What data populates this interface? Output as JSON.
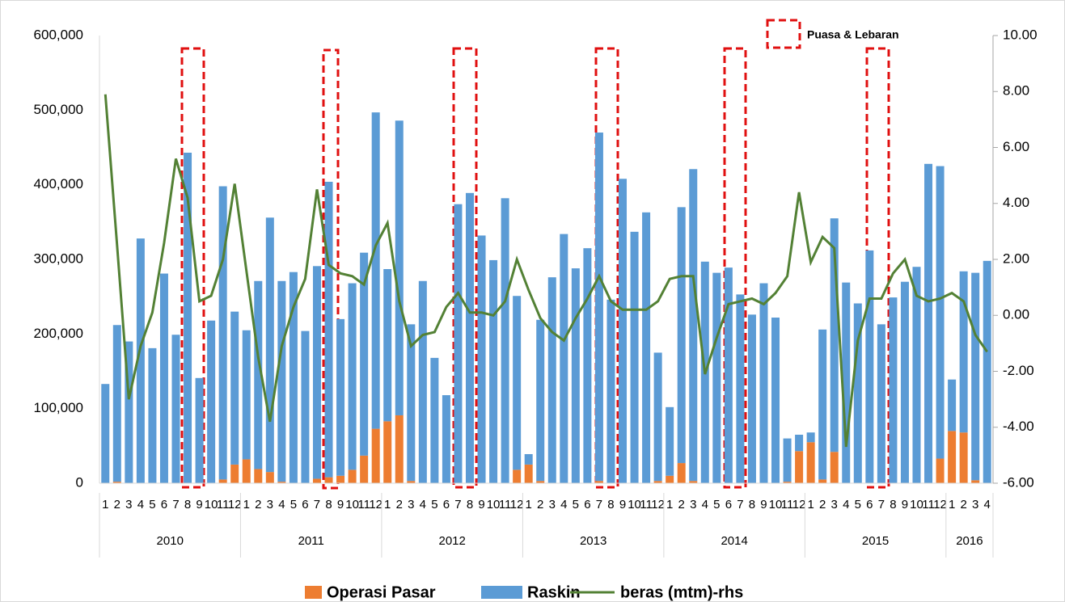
{
  "chart_data": {
    "type": "bar",
    "categories": [
      "1",
      "2",
      "3",
      "4",
      "5",
      "6",
      "7",
      "8",
      "9",
      "10",
      "11",
      "12",
      "1",
      "2",
      "3",
      "4",
      "5",
      "6",
      "7",
      "8",
      "9",
      "10",
      "11",
      "12",
      "1",
      "2",
      "3",
      "4",
      "5",
      "6",
      "7",
      "8",
      "9",
      "10",
      "11",
      "12",
      "1",
      "2",
      "3",
      "4",
      "5",
      "6",
      "7",
      "8",
      "9",
      "10",
      "11",
      "12",
      "1",
      "2",
      "3",
      "4",
      "5",
      "6",
      "7",
      "8",
      "9",
      "10",
      "11",
      "12",
      "1",
      "2",
      "3",
      "4",
      "5",
      "6",
      "7",
      "8",
      "9",
      "10",
      "11",
      "12",
      "1",
      "2",
      "3",
      "4"
    ],
    "year_groups": [
      "2010",
      "2011",
      "2012",
      "2013",
      "2014",
      "2015",
      "2016"
    ],
    "stacked": true,
    "series": [
      {
        "name": "Operasi Pasar",
        "color": "#ed7d31",
        "type": "bar",
        "values": [
          0,
          2000,
          0,
          0,
          0,
          0,
          0,
          0,
          0,
          0,
          5000,
          25000,
          32000,
          19000,
          15000,
          2000,
          0,
          0,
          6000,
          8000,
          10000,
          18000,
          37000,
          73000,
          83000,
          91000,
          3000,
          0,
          0,
          0,
          0,
          0,
          0,
          0,
          0,
          18000,
          25000,
          3000,
          0,
          0,
          0,
          0,
          3000,
          0,
          0,
          0,
          0,
          3000,
          10000,
          27000,
          3000,
          0,
          0,
          0,
          0,
          0,
          0,
          0,
          2000,
          43000,
          55000,
          5000,
          42000,
          0,
          0,
          0,
          0,
          0,
          0,
          0,
          0,
          33000,
          70000,
          68000,
          4000,
          0
        ]
      },
      {
        "name": "Raskin",
        "color": "#5b9bd5",
        "type": "bar",
        "values": [
          133000,
          210000,
          190000,
          328000,
          181000,
          281000,
          199000,
          443000,
          141000,
          218000,
          393000,
          205000,
          173000,
          252000,
          341000,
          269000,
          283000,
          204000,
          285000,
          396000,
          210000,
          250000,
          272000,
          424000,
          204000,
          395000,
          210000,
          271000,
          168000,
          118000,
          374000,
          389000,
          332000,
          299000,
          382000,
          233000,
          14000,
          216000,
          276000,
          334000,
          288000,
          315000,
          467000,
          246000,
          408000,
          337000,
          363000,
          172000,
          92000,
          343000,
          418000,
          297000,
          282000,
          289000,
          253000,
          226000,
          268000,
          222000,
          58000,
          22000,
          13000,
          201000,
          313000,
          269000,
          241000,
          312000,
          213000,
          249000,
          270000,
          290000,
          428000,
          392000,
          69000,
          216000,
          278000,
          298000
        ]
      },
      {
        "name": "beras (mtm)-rhs",
        "color": "#538135",
        "type": "line",
        "axis": "y2",
        "values": [
          7.9,
          2.5,
          -3.0,
          -1.1,
          0.1,
          2.6,
          5.6,
          4.2,
          0.5,
          0.7,
          2.0,
          4.7,
          1.6,
          -1.5,
          -3.8,
          -1.1,
          0.3,
          1.3,
          4.5,
          1.8,
          1.5,
          1.4,
          1.1,
          2.5,
          3.3,
          0.5,
          -1.1,
          -0.7,
          -0.6,
          0.3,
          0.8,
          0.1,
          0.1,
          0.0,
          0.5,
          2.0,
          0.9,
          -0.1,
          -0.6,
          -0.9,
          -0.1,
          0.6,
          1.4,
          0.5,
          0.2,
          0.2,
          0.2,
          0.5,
          1.3,
          1.4,
          1.4,
          -2.1,
          -0.8,
          0.4,
          0.5,
          0.6,
          0.4,
          0.8,
          1.4,
          4.4,
          1.9,
          2.8,
          2.4,
          -4.7,
          -0.9,
          0.6,
          0.6,
          1.5,
          2.0,
          0.7,
          0.5,
          0.6,
          0.8,
          0.5,
          -0.7,
          -1.3
        ]
      }
    ],
    "ylim": [
      0,
      600000
    ],
    "yticks": [
      0,
      {
        "value": 100000,
        "label": "100,000"
      },
      {
        "value": 200000,
        "label": "200,000"
      },
      {
        "value": 300000,
        "label": "300,000"
      },
      {
        "value": 400000,
        "label": "400,000"
      },
      {
        "value": 500000,
        "label": "500,000"
      },
      {
        "value": 600000,
        "label": "600,000"
      }
    ],
    "y2lim": [
      -6,
      10
    ],
    "y2ticks": [
      {
        "value": -6,
        "label": "-6.00"
      },
      {
        "value": -4,
        "label": "-4.00"
      },
      {
        "value": -2,
        "label": "-2.00"
      },
      {
        "value": 0,
        "label": "0.00"
      },
      {
        "value": 2,
        "label": "2.00"
      },
      {
        "value": 4,
        "label": "4.00"
      },
      {
        "value": 6,
        "label": "6.00"
      },
      {
        "value": 8,
        "label": "8.00"
      },
      {
        "value": 10,
        "label": "10.00"
      }
    ],
    "annotation": "Puasa & Lebaran",
    "legend": "bottom"
  }
}
